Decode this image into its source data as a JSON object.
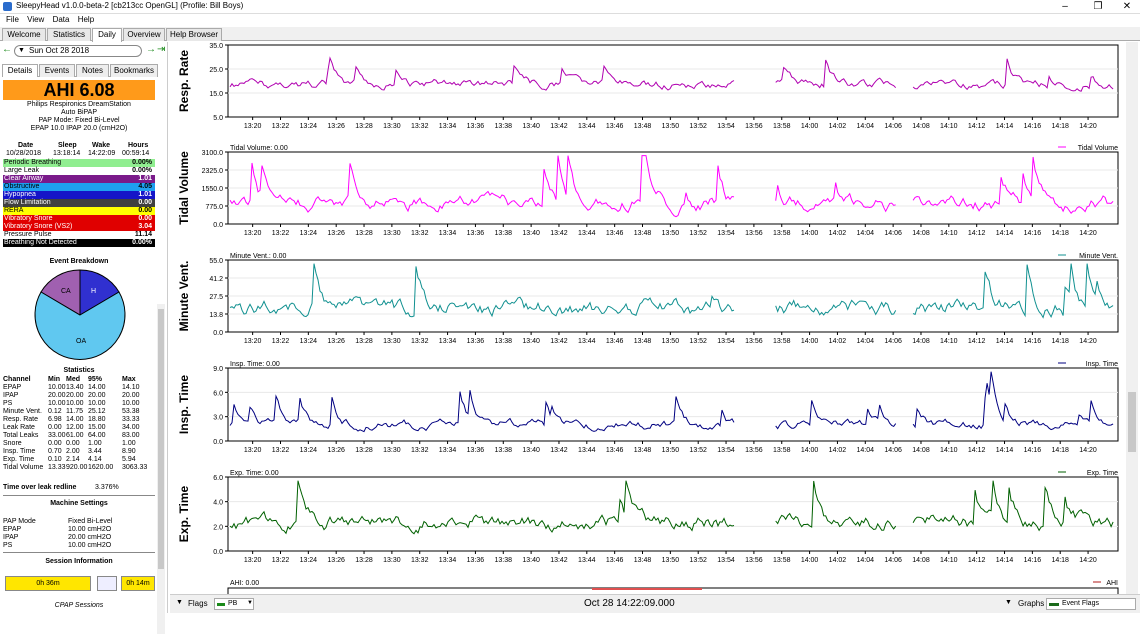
{
  "window": {
    "title": "SleepyHead v1.0.0-beta-2 [cb213cc OpenGL] (Profile: Bill Boys)"
  },
  "menu": [
    "File",
    "View",
    "Data",
    "Help"
  ],
  "tabs": [
    "Welcome",
    "Statistics",
    "Daily",
    "Overview",
    "Help Browser"
  ],
  "date": "Sun Oct 28 2018",
  "left_tabs": [
    "Details",
    "Events",
    "Notes",
    "Bookmarks"
  ],
  "ahi": "AHI 6.08",
  "machine": {
    "name": "Philips Respironics DreamStation",
    "model": "Auto BiPAP",
    "mode": "PAP Mode: Fixed Bi-Level",
    "pressure": "EPAP 10.0 IPAP 20.0 (cmH2O)"
  },
  "session": {
    "headers": [
      "Date",
      "Sleep",
      "Wake",
      "Hours"
    ],
    "values": [
      "10/28/2018",
      "13:18:14",
      "14:22:09",
      "00:59:14"
    ]
  },
  "events": [
    {
      "label": "Periodic Breathing",
      "value": "0.00%",
      "bg": "#90ee90",
      "fg": "#000"
    },
    {
      "label": "Large Leak",
      "value": "0.00%",
      "bg": "#ffffff",
      "fg": "#000"
    },
    {
      "label": "Clear Airway",
      "value": "1.01",
      "bg": "#7a1a8a",
      "fg": "#fff"
    },
    {
      "label": "Obstructive",
      "value": "4.05",
      "bg": "#1ea0f0",
      "fg": "#000"
    },
    {
      "label": "Hypopnea",
      "value": "1.01",
      "bg": "#1515c8",
      "fg": "#fff"
    },
    {
      "label": "Flow Limitation",
      "value": "0.00",
      "bg": "#404040",
      "fg": "#fff"
    },
    {
      "label": "RERA",
      "value": "0.00",
      "bg": "#ffff00",
      "fg": "#000"
    },
    {
      "label": "Vibratory Snore",
      "value": "0.00",
      "bg": "#e00000",
      "fg": "#fff"
    },
    {
      "label": "Vibratory Snore (VS2)",
      "value": "3.04",
      "bg": "#e00000",
      "fg": "#fff"
    },
    {
      "label": "Pressure Pulse",
      "value": "11.14",
      "bg": "#ffffff",
      "fg": "#000"
    },
    {
      "label": "Breathing Not Detected",
      "value": "0.00%",
      "bg": "#000000",
      "fg": "#fff"
    }
  ],
  "breakdown": {
    "title": "Event Breakdown",
    "slices": [
      {
        "label": "CA",
        "color": "#a060b0"
      },
      {
        "label": "H",
        "color": "#3030d0"
      },
      {
        "label": "OA",
        "color": "#60c8f0"
      }
    ]
  },
  "statistics": {
    "title": "Statistics",
    "headers": [
      "Channel",
      "Min",
      "Med",
      "95%",
      "Max"
    ],
    "rows": [
      [
        "EPAP",
        "10.00",
        "13.40",
        "14.00",
        "14.10"
      ],
      [
        "IPAP",
        "20.00",
        "20.00",
        "20.00",
        "20.00"
      ],
      [
        "PS",
        "10.00",
        "10.00",
        "10.00",
        "10.00"
      ],
      [
        "Minute Vent.",
        "0.12",
        "11.75",
        "25.12",
        "53.38"
      ],
      [
        "Resp. Rate",
        "6.98",
        "14.00",
        "18.80",
        "33.33"
      ],
      [
        "Leak Rate",
        "0.00",
        "12.00",
        "15.00",
        "34.00"
      ],
      [
        "Total Leaks",
        "33.00",
        "61.00",
        "64.00",
        "83.00"
      ],
      [
        "Snore",
        "0.00",
        "0.00",
        "1.00",
        "1.00"
      ],
      [
        "Insp. Time",
        "0.70",
        "2.00",
        "3.44",
        "8.90"
      ],
      [
        "Exp. Time",
        "0.10",
        "2.14",
        "4.14",
        "5.94"
      ],
      [
        "Tidal Volume",
        "13.33",
        "920.00",
        "1620.00",
        "3063.33"
      ]
    ]
  },
  "leak_redline": {
    "label": "Time over leak redline",
    "value": "3.376%"
  },
  "machine_settings": {
    "title": "Machine Settings",
    "rows": [
      [
        "PAP Mode",
        "Fixed Bi-Level"
      ],
      [
        "EPAP",
        "10.00 cmH2O"
      ],
      [
        "IPAP",
        "20.00 cmH2O"
      ],
      [
        "PS",
        "10.00 cmH2O"
      ]
    ]
  },
  "session_info": {
    "title": "Session Information",
    "s1": "0h 36m",
    "s2": "0h 14m",
    "caption": "CPAP Sessions"
  },
  "time_ticks": [
    "13:20",
    "13:22",
    "13:24",
    "13:26",
    "13:28",
    "13:30",
    "13:32",
    "13:34",
    "13:36",
    "13:38",
    "13:40",
    "13:42",
    "13:44",
    "13:46",
    "13:48",
    "13:50",
    "13:52",
    "13:54",
    "13:56",
    "13:58",
    "14:00",
    "14:02",
    "14:04",
    "14:06",
    "14:08",
    "14:10",
    "14:12",
    "14:14",
    "14:16",
    "14:18",
    "14:20"
  ],
  "graphs": [
    {
      "ylabel": "Resp. Rate",
      "header": "",
      "legend": "",
      "ticks": [
        "35.0",
        "25.0",
        "15.0",
        "5.0"
      ],
      "color": "#b000b0"
    },
    {
      "ylabel": "Tidal Volume",
      "header": "Tidal Volume: 0.00",
      "legend": "Tidal Volume",
      "ticks": [
        "3100.0",
        "2325.0",
        "1550.0",
        "775.0",
        "0.0"
      ],
      "color": "#ff00ff"
    },
    {
      "ylabel": "Minute Vent.",
      "header": "Minute Vent.: 0.00",
      "legend": "Minute Vent.",
      "ticks": [
        "55.0",
        "41.2",
        "27.5",
        "13.8",
        "0.0"
      ],
      "color": "#109090"
    },
    {
      "ylabel": "Insp. Time",
      "header": "Insp. Time: 0.00",
      "legend": "Insp. Time",
      "ticks": [
        "9.0",
        "6.0",
        "3.0",
        "0.0"
      ],
      "color": "#000080"
    },
    {
      "ylabel": "Exp. Time",
      "header": "Exp. Time: 0.00",
      "legend": "Exp. Time",
      "ticks": [
        "6.0",
        "4.0",
        "2.0",
        "0.0"
      ],
      "color": "#006000"
    }
  ],
  "ahi_graph": {
    "header": "AHI: 0.00",
    "legend": "AHI"
  },
  "bottom": {
    "flags": "Flags",
    "pb": "PB",
    "datetime": "Oct 28 14:22:09.000",
    "graphs": "Graphs",
    "event_flags": "Event Flags"
  }
}
